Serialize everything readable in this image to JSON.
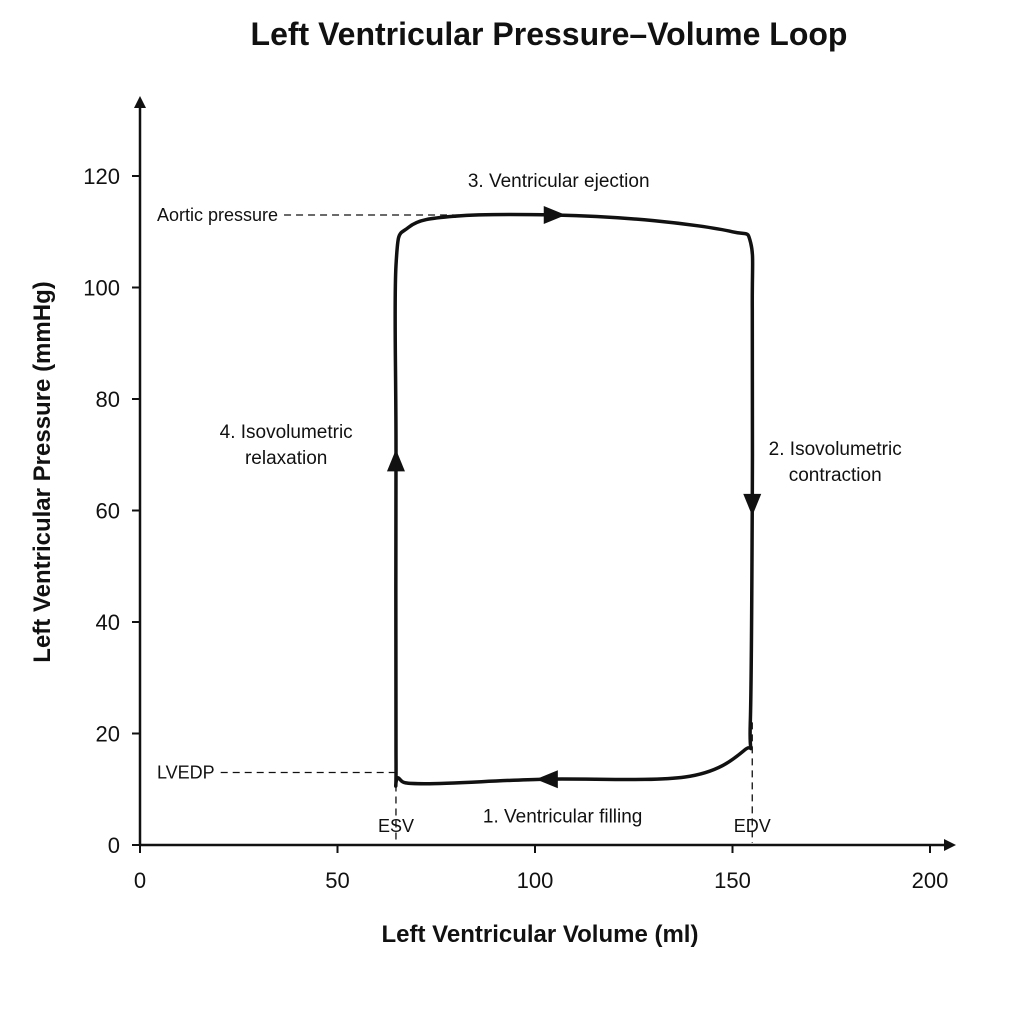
{
  "chart_data": {
    "type": "line",
    "title": "Left Ventricular Pressure–Volume Loop",
    "xlabel": "Left Ventricular Volume (ml)",
    "ylabel": "Left Ventricular Pressure (mmHg)",
    "xlim": [
      0,
      200
    ],
    "ylim": [
      0,
      130
    ],
    "xticks": [
      "0",
      "50",
      "100",
      "150",
      "200"
    ],
    "yticks": [
      "0",
      "20",
      "40",
      "60",
      "80",
      "100",
      "120"
    ],
    "grid": false,
    "loop": {
      "direction": "counter-clockwise",
      "points": [
        {
          "x": 155,
          "y": 96
        },
        {
          "x": 154.6,
          "y": 108
        },
        {
          "x": 150,
          "y": 110
        },
        {
          "x": 130,
          "y": 112
        },
        {
          "x": 105,
          "y": 113
        },
        {
          "x": 80,
          "y": 112.8
        },
        {
          "x": 68,
          "y": 110.8
        },
        {
          "x": 64.8,
          "y": 104
        },
        {
          "x": 64.8,
          "y": 71
        },
        {
          "x": 64.8,
          "y": 16
        },
        {
          "x": 65.5,
          "y": 12
        },
        {
          "x": 72,
          "y": 11
        },
        {
          "x": 102,
          "y": 11.8
        },
        {
          "x": 138,
          "y": 12.2
        },
        {
          "x": 153,
          "y": 17
        },
        {
          "x": 154.5,
          "y": 22
        },
        {
          "x": 155,
          "y": 62
        }
      ],
      "arrows": [
        {
          "x": 105,
          "y": 113,
          "dir": "right"
        },
        {
          "x": 155,
          "y": 61,
          "dir": "down"
        },
        {
          "x": 103,
          "y": 11.8,
          "dir": "left"
        },
        {
          "x": 64.8,
          "y": 69,
          "dir": "up"
        }
      ]
    },
    "reference_lines": [
      {
        "label": "Aortic pressure",
        "axis": "y",
        "value": 113
      },
      {
        "label": "LVEDP",
        "axis": "y",
        "value": 13
      },
      {
        "label": "ESV",
        "axis": "x",
        "value": 64.8
      },
      {
        "label": "EDV",
        "axis": "x",
        "value": 155
      }
    ],
    "annotations": [
      {
        "lines": [
          "3. Ventricular ejection"
        ],
        "x": 106,
        "y": 118
      },
      {
        "lines": [
          "2. Isovolumetric",
          "contraction"
        ],
        "x": 176,
        "y": 70
      },
      {
        "lines": [
          "1. Ventricular filling"
        ],
        "x": 107,
        "y": 4
      },
      {
        "lines": [
          "4. Isovolumetric",
          "relaxation"
        ],
        "x": 37,
        "y": 73
      }
    ]
  }
}
